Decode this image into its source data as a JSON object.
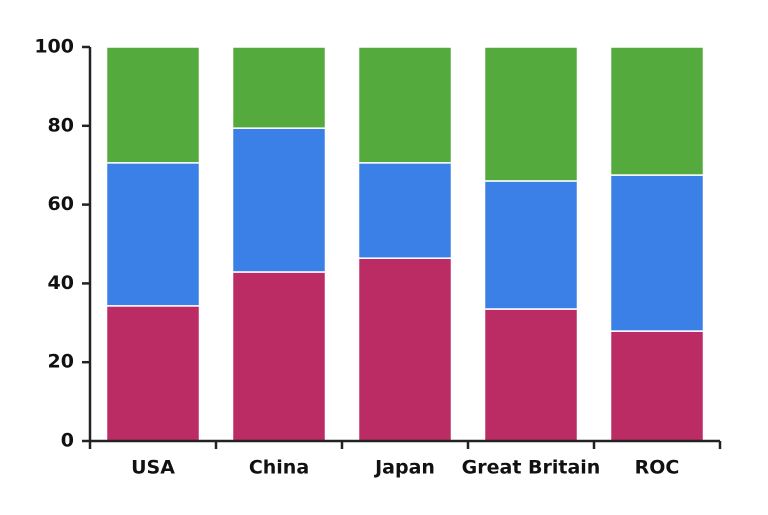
{
  "chart_data": {
    "type": "stacked_bar",
    "categories": [
      "USA",
      "China",
      "Japan",
      "Great Britain",
      "ROC"
    ],
    "series": [
      {
        "color": "#bc2c64",
        "values": [
          34.3,
          42.9,
          46.4,
          33.5,
          27.9
        ]
      },
      {
        "color": "#3a80e6",
        "values": [
          36.3,
          36.5,
          24.2,
          32.5,
          39.6
        ]
      },
      {
        "color": "#55aa3e",
        "values": [
          29.4,
          20.6,
          29.4,
          34.0,
          32.5
        ]
      }
    ],
    "ylim": [
      0,
      100
    ],
    "yticks": [
      0,
      20,
      40,
      60,
      80,
      100
    ],
    "grid": false
  }
}
